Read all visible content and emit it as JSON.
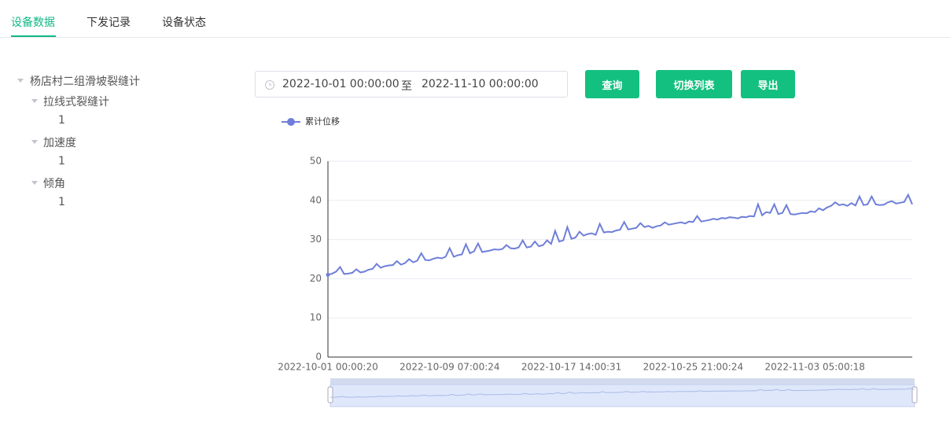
{
  "tabs": [
    "设备数据",
    "下发记录",
    "设备状态"
  ],
  "tree": {
    "label": "杨店村二组滑坡裂缝计",
    "children": [
      {
        "label": "拉线式裂缝计",
        "children": [
          {
            "label": "1"
          }
        ]
      },
      {
        "label": "加速度",
        "children": [
          {
            "label": "1"
          }
        ]
      },
      {
        "label": "倾角",
        "children": [
          {
            "label": "1"
          }
        ]
      }
    ]
  },
  "date_range": {
    "start": "2022-10-01 00:00:00",
    "separator": "至",
    "end": "2022-11-10 00:00:00"
  },
  "buttons": [
    "查询",
    "切换列表",
    "导出"
  ],
  "chart_data": {
    "type": "line",
    "categories": [
      "2022-10-01 00:00:20",
      null,
      null,
      null,
      null,
      null,
      null,
      null,
      null,
      null,
      null,
      null,
      null,
      null,
      null,
      null,
      null,
      null,
      null,
      null,
      null,
      null,
      null,
      null,
      null,
      null,
      null,
      null,
      null,
      null,
      "2022-10-09 07:00:24",
      null,
      null,
      null,
      null,
      null,
      null,
      null,
      null,
      null,
      null,
      null,
      null,
      null,
      null,
      null,
      null,
      null,
      null,
      null,
      null,
      null,
      null,
      null,
      null,
      null,
      null,
      null,
      null,
      null,
      "2022-10-17 14:00:31",
      null,
      null,
      null,
      null,
      null,
      null,
      null,
      null,
      null,
      null,
      null,
      null,
      null,
      null,
      null,
      null,
      null,
      null,
      null,
      null,
      null,
      null,
      null,
      null,
      null,
      null,
      null,
      null,
      null,
      "2022-10-25 21:00:24",
      null,
      null,
      null,
      null,
      null,
      null,
      null,
      null,
      null,
      null,
      null,
      null,
      null,
      null,
      null,
      null,
      null,
      null,
      null,
      null,
      null,
      null,
      null,
      null,
      null,
      null,
      null,
      null,
      null,
      "2022-11-03 05:00:18",
      null,
      null,
      null,
      null,
      null,
      null,
      null,
      null,
      null,
      null,
      null,
      null,
      null,
      null,
      null,
      null,
      null,
      null,
      null,
      null,
      null,
      null,
      null,
      null
    ],
    "series": [
      {
        "name": "累计位移",
        "color": "#6f7fd9",
        "values": [
          21,
          21.3,
          21.8,
          23,
          21.2,
          21.3,
          21.5,
          22.4,
          21.6,
          21.8,
          22.3,
          22.5,
          23.8,
          22.8,
          23.2,
          23.4,
          23.5,
          24.5,
          23.6,
          24,
          25,
          24.2,
          24.6,
          26.5,
          24.8,
          24.7,
          25.1,
          25.4,
          25.2,
          25.6,
          27.8,
          25.6,
          26,
          26.2,
          28.8,
          26.5,
          27,
          29,
          26.8,
          27,
          27.2,
          27.5,
          27.4,
          27.6,
          28.6,
          27.8,
          27.7,
          28,
          29.8,
          28,
          28.2,
          29.5,
          28.3,
          28.6,
          29.8,
          28.9,
          32.2,
          29.5,
          29.8,
          33.2,
          30.2,
          30.5,
          32,
          31,
          31.4,
          31.6,
          31.2,
          34,
          31.8,
          32,
          31.9,
          32.3,
          32.5,
          34.5,
          32.6,
          32.8,
          33,
          34.2,
          33.2,
          33.5,
          33,
          33.4,
          33.6,
          34.4,
          33.8,
          34,
          34.2,
          34.4,
          34.1,
          34.6,
          34.5,
          36,
          34.6,
          34.8,
          35,
          35.3,
          35.1,
          35.5,
          35.4,
          35.7,
          35.6,
          35.4,
          35.8,
          35.7,
          36,
          35.9,
          39,
          36.2,
          37,
          36.8,
          39,
          36.5,
          36.8,
          38.8,
          36.5,
          36.4,
          36.6,
          36.8,
          36.7,
          37.2,
          37,
          38,
          37.5,
          38.2,
          38.6,
          39.5,
          38.8,
          39,
          38.6,
          39.3,
          38.7,
          41,
          38.8,
          39,
          41,
          39,
          38.8,
          38.9,
          39.5,
          39.8,
          39.2,
          39.4,
          39.6,
          41.4,
          39
        ]
      }
    ],
    "ylim": [
      0,
      50
    ],
    "yticks": [
      0,
      10,
      20,
      30,
      40,
      50
    ],
    "grid": true
  }
}
